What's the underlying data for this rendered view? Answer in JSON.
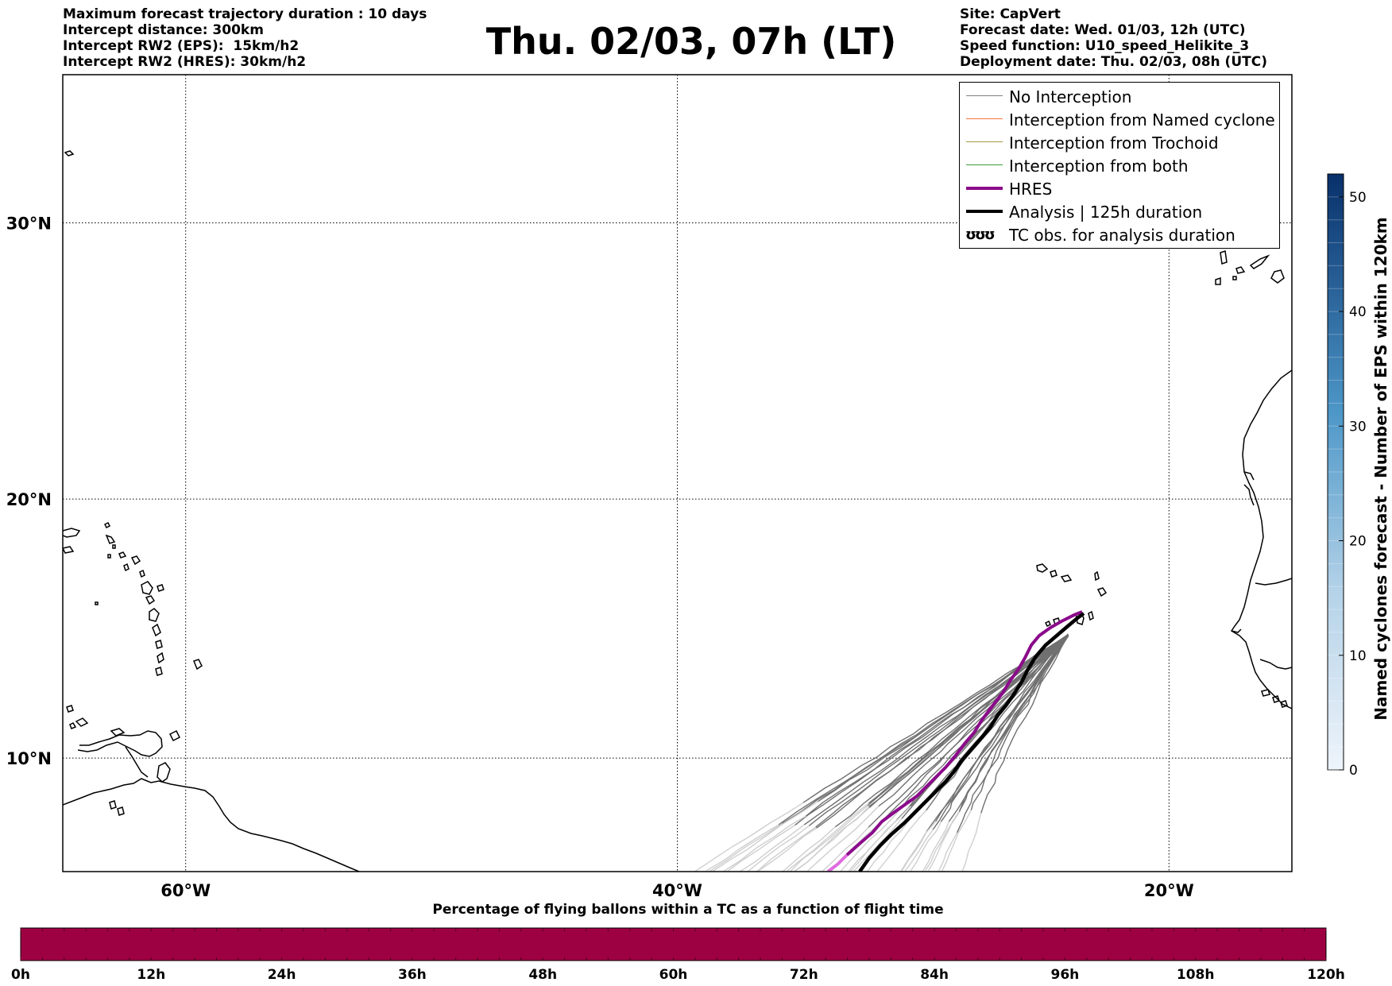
{
  "header_left": [
    "Maximum forecast trajectory duration : 10 days",
    "Intercept distance: 300km",
    "Intercept RW2 (EPS):  15km/h2",
    "Intercept RW2 (HRES): 30km/h2"
  ],
  "title": "Thu. 02/03, 07h (LT)",
  "header_right": [
    "Site: CapVert",
    "Forecast date: Wed. 01/03, 12h (UTC)",
    "Speed function: U10_speed_Helikite_3",
    "Deployment date: Thu. 02/03, 08h (UTC)"
  ],
  "map": {
    "extent": {
      "lon_min": -65,
      "lon_max": -15,
      "lat_min": 5.5,
      "lat_max": 35
    },
    "lon_ticks": [
      {
        "value": -60,
        "label": "60°W"
      },
      {
        "value": -40,
        "label": "40°W"
      },
      {
        "value": -20,
        "label": "20°W"
      }
    ],
    "lat_ticks": [
      {
        "value": 10,
        "label": "10°N"
      },
      {
        "value": 20,
        "label": "20°N"
      },
      {
        "value": 30,
        "label": "30°N"
      }
    ],
    "deployment_site": {
      "lon": -24.1,
      "lat": 14.8
    }
  },
  "legend": {
    "position": "top-right",
    "entries": [
      {
        "label": "No Interception",
        "color": "#808080",
        "width": 1.2,
        "type": "line"
      },
      {
        "label": "Interception from Named cyclone",
        "color": "#f4743b",
        "width": 1.5,
        "type": "line"
      },
      {
        "label": "Interception from Trochoid",
        "color": "#a59a3f",
        "width": 1.5,
        "type": "line"
      },
      {
        "label": "Interception from both",
        "color": "#3a9e3a",
        "width": 1.5,
        "type": "line"
      },
      {
        "label": "HRES",
        "color": "#8b0a8b",
        "width": 4,
        "type": "line"
      },
      {
        "label": "Analysis | 125h duration",
        "color": "#000000",
        "width": 4,
        "type": "line"
      },
      {
        "label": "TC obs. for analysis duration",
        "symbol": "ʊʊʊ",
        "type": "symbol"
      }
    ]
  },
  "colorbar_right": {
    "label": "Named cyclones forecast - Number of EPS within 120km",
    "min": 0,
    "max": 52,
    "ticks": [
      "0",
      "10",
      "20",
      "30",
      "40",
      "50"
    ],
    "tick_values": [
      0,
      10,
      20,
      30,
      40,
      50
    ],
    "color_low": "#e6f0fa",
    "color_high": "#08306b"
  },
  "colorbar_bottom": {
    "title": "Percentage of flying ballons within a TC as a function of flight time",
    "ticks": [
      "0h",
      "12h",
      "24h",
      "36h",
      "48h",
      "60h",
      "72h",
      "84h",
      "96h",
      "108h",
      "120h"
    ],
    "tick_values": [
      0,
      12,
      24,
      36,
      48,
      60,
      72,
      84,
      96,
      108,
      120
    ],
    "bar_color": "#9e0142"
  },
  "colors": {
    "eps": "#707070",
    "hres": "#8b0a8b",
    "hres_fade": "#e06ae0",
    "analysis": "#000000",
    "coast": "#000000",
    "grid": "#000000"
  }
}
